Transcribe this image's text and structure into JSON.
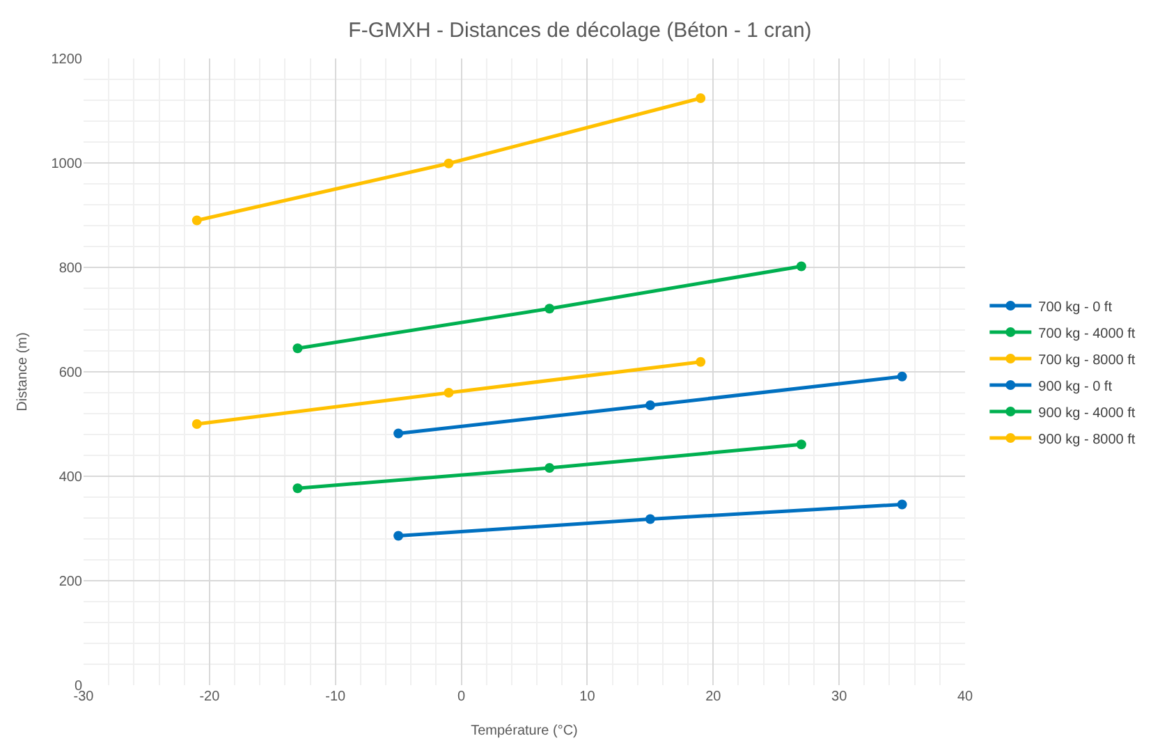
{
  "chart_data": {
    "type": "line",
    "title": "F-GMXH - Distances de décolage (Béton - 1 cran)",
    "xlabel": "Température (°C)",
    "ylabel": "Distance (m)",
    "xlim": [
      -30,
      40
    ],
    "xticks": [
      -30,
      -20,
      -10,
      0,
      10,
      20,
      30,
      40
    ],
    "ylim": [
      0,
      1200
    ],
    "yticks": [
      0,
      200,
      400,
      600,
      800,
      1000,
      1200
    ],
    "grid": true,
    "legend": "right",
    "marker": "circle",
    "line_style": "solid",
    "series": [
      {
        "name": "700 kg - 0 ft",
        "color": "#0070c0",
        "x": [
          -5,
          15,
          35
        ],
        "values": [
          286,
          318,
          346
        ]
      },
      {
        "name": "700 kg - 4000 ft",
        "color": "#00b050",
        "x": [
          -13,
          7,
          27
        ],
        "values": [
          377,
          416,
          461
        ]
      },
      {
        "name": "700 kg - 8000 ft",
        "color": "#ffc000",
        "x": [
          -21,
          -1,
          19
        ],
        "values": [
          500,
          560,
          619
        ]
      },
      {
        "name": "900 kg - 0 ft",
        "color": "#0070c0",
        "x": [
          -5,
          15,
          35
        ],
        "values": [
          482,
          536,
          591
        ]
      },
      {
        "name": "900 kg - 4000 ft",
        "color": "#00b050",
        "x": [
          -13,
          7,
          27
        ],
        "values": [
          645,
          721,
          802
        ]
      },
      {
        "name": "900 kg - 8000 ft",
        "color": "#ffc000",
        "x": [
          -21,
          -1,
          19
        ],
        "values": [
          890,
          999,
          1124
        ]
      }
    ]
  }
}
